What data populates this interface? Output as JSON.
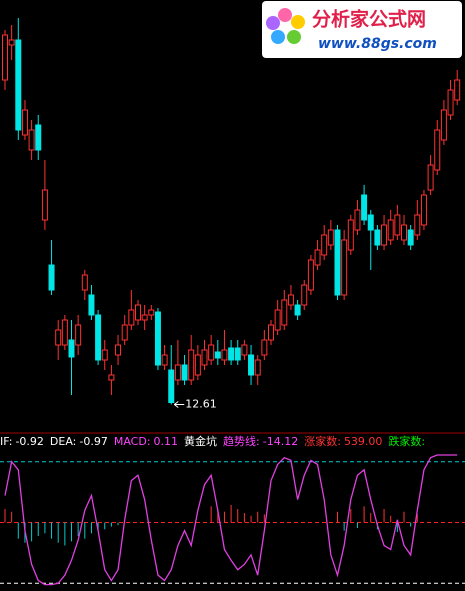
{
  "logo": {
    "title": "分析家公式网",
    "url": "www.88gs.com"
  },
  "chart_data": [
    {
      "type": "candlestick",
      "up_color": "#ff3232",
      "down_color": "#00e5e5",
      "ylim": [
        12.2,
        20.7
      ],
      "annotation": 12.61,
      "open": [
        19.1,
        19.8,
        19.9,
        18.0,
        17.7,
        18.2,
        16.3,
        15.4,
        13.8,
        13.8,
        13.9,
        13.8,
        14.9,
        14.8,
        14.4,
        13.5,
        13.1,
        13.6,
        13.9,
        14.2,
        14.3,
        14.3,
        14.4,
        14.46,
        13.4,
        13.3,
        13.1,
        13.4,
        13.1,
        13.2,
        13.4,
        13.5,
        13.66,
        13.5,
        13.74,
        13.74,
        13.6,
        13.6,
        13.2,
        13.6,
        13.9,
        14.1,
        14.2,
        14.6,
        14.6,
        14.6,
        14.9,
        15.4,
        15.6,
        15.8,
        16.1,
        14.8,
        15.7,
        16.1,
        16.8,
        16.4,
        16.1,
        15.8,
        15.9,
        16.0,
        15.9,
        16.1,
        16.0,
        16.2,
        16.9,
        17.3,
        17.9,
        18.4,
        18.7
      ],
      "high": [
        20.1,
        20.2,
        20.34,
        18.7,
        18.3,
        18.4,
        17.5,
        15.9,
        14.3,
        14.4,
        14.3,
        14.4,
        15.3,
        15.0,
        14.5,
        13.9,
        13.4,
        14.0,
        14.4,
        14.9,
        14.7,
        14.6,
        14.6,
        14.54,
        13.8,
        13.8,
        13.9,
        13.6,
        14.0,
        13.8,
        13.9,
        14.0,
        13.9,
        14.1,
        13.9,
        13.9,
        13.9,
        13.8,
        13.6,
        14.1,
        14.3,
        14.7,
        14.9,
        15.0,
        14.7,
        15.1,
        15.6,
        15.9,
        16.2,
        16.3,
        16.2,
        16.1,
        16.4,
        16.7,
        17.0,
        16.5,
        16.2,
        16.4,
        16.5,
        16.6,
        16.4,
        16.2,
        16.7,
        16.9,
        17.6,
        18.3,
        18.7,
        19.1,
        19.3
      ],
      "low": [
        18.9,
        19.5,
        17.9,
        17.9,
        17.5,
        17.5,
        16.1,
        14.8,
        13.5,
        13.7,
        12.8,
        13.6,
        14.7,
        14.3,
        13.4,
        13.3,
        12.8,
        13.4,
        13.8,
        14.1,
        14.2,
        14.1,
        14.3,
        13.3,
        13.3,
        12.61,
        13.0,
        13.0,
        13.0,
        13.1,
        13.3,
        13.4,
        13.4,
        13.4,
        13.4,
        13.4,
        13.5,
        13.0,
        13.0,
        13.5,
        13.8,
        14.0,
        14.1,
        14.5,
        14.3,
        14.5,
        14.8,
        15.3,
        15.5,
        15.7,
        14.7,
        14.7,
        15.6,
        16.0,
        16.2,
        15.3,
        15.7,
        15.7,
        15.8,
        15.9,
        15.8,
        15.7,
        15.9,
        16.1,
        16.8,
        17.2,
        17.8,
        18.3,
        18.6
      ],
      "close": [
        20.0,
        19.9,
        18.1,
        18.5,
        18.1,
        17.7,
        16.9,
        14.9,
        14.1,
        14.3,
        13.56,
        14.2,
        15.2,
        14.4,
        13.5,
        13.7,
        13.2,
        13.8,
        14.2,
        14.5,
        14.6,
        14.4,
        14.5,
        13.4,
        13.6,
        12.65,
        13.4,
        13.1,
        13.7,
        13.6,
        13.7,
        13.8,
        13.54,
        13.7,
        13.5,
        13.5,
        13.8,
        13.2,
        13.5,
        13.9,
        14.2,
        14.5,
        14.7,
        14.8,
        14.4,
        15.0,
        15.5,
        15.7,
        16.0,
        16.1,
        14.8,
        15.9,
        16.3,
        16.5,
        16.3,
        16.1,
        15.8,
        16.2,
        16.3,
        16.4,
        16.2,
        15.8,
        16.4,
        16.8,
        17.4,
        18.1,
        18.5,
        18.9,
        19.1
      ]
    },
    {
      "type": "line",
      "ylim": [
        0,
        100
      ],
      "indicators": [
        {
          "name": "IF:",
          "value": -0.92,
          "color": "#ffffff"
        },
        {
          "name": "DEA:",
          "value": -0.97,
          "color": "#ffffff"
        },
        {
          "name": "MACD:",
          "value": 0.11,
          "color": "#ff44ff"
        },
        {
          "name": "黄金坑",
          "color": "#ffffff"
        },
        {
          "name": "趋势线:",
          "value": -14.12,
          "color": "#ff44ff"
        },
        {
          "name": "涨家数:",
          "value": 539,
          "value_label": "539.00",
          "color": "#ff3232"
        },
        {
          "name": "跌家数:",
          "color": "#00ee00"
        }
      ],
      "ref_lines": [
        {
          "value": 95,
          "color": "#00cccc"
        },
        {
          "value": 50,
          "color": "#ff2020"
        },
        {
          "value": 5,
          "color": "#ffffff"
        }
      ],
      "bars": {
        "up_color": "#ff3232",
        "down_color": "#00cccc",
        "values": [
          60,
          58,
          38,
          35,
          36,
          40,
          42,
          38,
          35,
          33,
          36,
          40,
          38,
          42,
          44,
          45,
          47,
          48,
          null,
          null,
          null,
          null,
          null,
          null,
          null,
          null,
          null,
          null,
          null,
          null,
          null,
          62,
          60,
          58,
          63,
          60,
          57,
          55,
          58,
          56,
          null,
          null,
          null,
          null,
          null,
          null,
          null,
          null,
          null,
          null,
          58,
          44,
          60,
          46,
          62,
          57,
          45,
          60,
          55,
          43,
          58,
          47,
          56,
          null,
          null,
          null,
          null,
          null,
          null
        ]
      },
      "series": [
        {
          "color": "#e040e0",
          "values": [
            70,
            95,
            89,
            44,
            19,
            7,
            4,
            4,
            5,
            11,
            22,
            37,
            59,
            70,
            44,
            15,
            7,
            15,
            52,
            81,
            85,
            67,
            37,
            11,
            7,
            15,
            33,
            44,
            33,
            59,
            78,
            85,
            59,
            30,
            22,
            15,
            19,
            26,
            11,
            44,
            81,
            93,
            98,
            96,
            67,
            85,
            96,
            93,
            67,
            26,
            11,
            33,
            67,
            85,
            89,
            67,
            48,
            33,
            30,
            52,
            33,
            26,
            59,
            89,
            98,
            100,
            100,
            100,
            100
          ]
        }
      ]
    }
  ]
}
